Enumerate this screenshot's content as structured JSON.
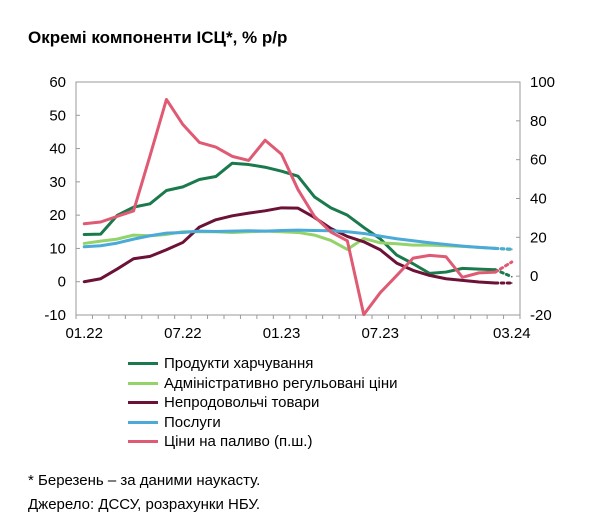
{
  "title": "Окремі компоненти ІСЦ*, % р/р",
  "footnote_nowcast": "* Березень – за даними наукасту.",
  "footnote_source": "Джерело: ДССУ, розрахунки НБУ.",
  "chart_data": {
    "type": "line",
    "title": "Окремі компоненти ІСЦ*, % р/р",
    "x": [
      "01.22",
      "02.22",
      "03.22",
      "04.22",
      "05.22",
      "06.22",
      "07.22",
      "08.22",
      "09.22",
      "10.22",
      "11.22",
      "12.22",
      "01.23",
      "02.23",
      "03.23",
      "04.23",
      "05.23",
      "06.23",
      "07.23",
      "08.23",
      "09.23",
      "10.23",
      "11.23",
      "12.23",
      "01.24",
      "02.24",
      "03.24"
    ],
    "x_tick_labels": [
      "01.22",
      "07.22",
      "01.23",
      "07.23",
      "03.24"
    ],
    "y_left": {
      "ylim": [
        -10,
        60
      ],
      "ticks": [
        "-10",
        "0",
        "10",
        "20",
        "30",
        "40",
        "50",
        "60"
      ]
    },
    "y_right": {
      "ylim": [
        -20,
        100
      ],
      "ticks": [
        "-20",
        "0",
        "20",
        "40",
        "60",
        "80",
        "100"
      ],
      "label": "п.ш."
    },
    "nowcast_last_point": true,
    "legend_position": "bottom",
    "series": [
      {
        "name": "Продукти харчування",
        "color": "#1a7a4c",
        "axis": "left",
        "values": [
          14.2,
          14.3,
          19.9,
          22.4,
          23.4,
          27.4,
          28.5,
          30.7,
          31.6,
          35.6,
          35.2,
          34.4,
          33.2,
          31.7,
          25.5,
          22.2,
          20.0,
          16.3,
          12.9,
          8.0,
          5.4,
          2.5,
          2.9,
          4.0,
          3.8,
          3.6,
          1.5
        ]
      },
      {
        "name": "Адміністративно регульовані ціни",
        "color": "#93d36a",
        "axis": "left",
        "values": [
          11.5,
          12.2,
          12.8,
          14.0,
          13.8,
          14.2,
          15.0,
          15.0,
          15.0,
          14.8,
          15.0,
          15.2,
          15.0,
          14.8,
          14.0,
          12.4,
          9.7,
          13.0,
          11.7,
          11.4,
          11.0,
          11.0,
          10.8,
          10.6,
          10.3,
          10.0,
          9.6
        ]
      },
      {
        "name": "Непродовольчі товари",
        "color": "#6b1236",
        "axis": "left",
        "values": [
          0.0,
          0.9,
          3.8,
          6.9,
          7.6,
          9.6,
          11.8,
          16.4,
          18.6,
          19.8,
          20.6,
          21.3,
          22.2,
          22.1,
          19.3,
          16.0,
          13.6,
          12.0,
          9.6,
          5.6,
          3.4,
          1.9,
          0.9,
          0.4,
          -0.1,
          -0.4,
          -0.4
        ]
      },
      {
        "name": "Послуги",
        "color": "#4baad8",
        "axis": "left",
        "values": [
          10.5,
          10.8,
          11.6,
          12.8,
          13.8,
          14.6,
          14.8,
          15.2,
          15.1,
          15.2,
          15.3,
          15.2,
          15.4,
          15.5,
          15.4,
          15.3,
          15.0,
          14.5,
          13.7,
          12.9,
          12.3,
          11.7,
          11.2,
          10.7,
          10.3,
          10.0,
          9.8
        ]
      },
      {
        "name": "Ціни на паливо (п.ш.)",
        "color": "#df5a73",
        "axis": "right",
        "values": [
          27.0,
          27.9,
          30.8,
          33.6,
          62.0,
          91.0,
          78.1,
          68.9,
          66.5,
          61.7,
          59.6,
          70.0,
          62.8,
          44.6,
          30.8,
          22.7,
          18.2,
          -19.8,
          -8.5,
          0.3,
          9.3,
          10.7,
          10.0,
          -0.6,
          1.7,
          2.1,
          7.3
        ]
      }
    ]
  }
}
